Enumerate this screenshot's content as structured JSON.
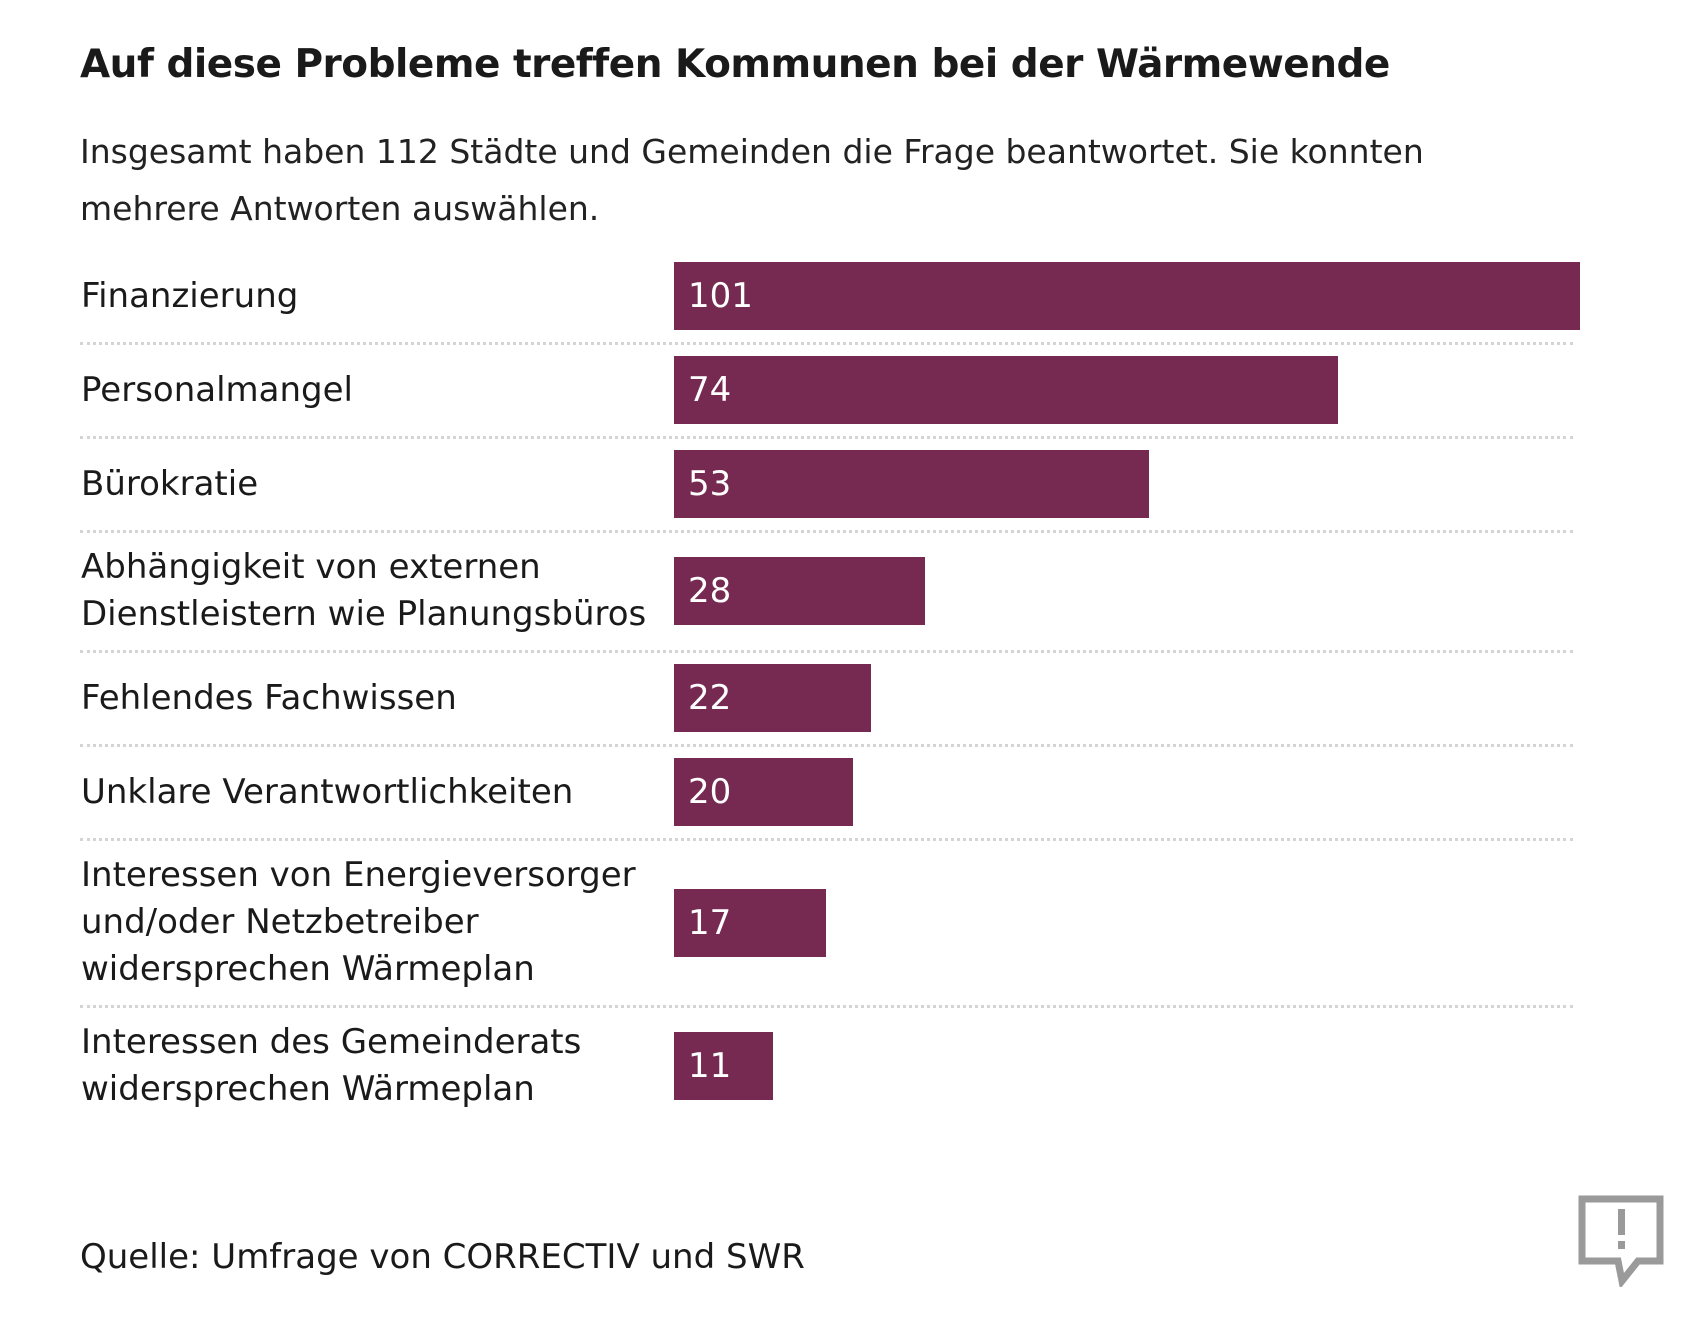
{
  "title": "Auf diese Probleme treffen Kommunen bei der Wärmewende",
  "subtitle_line1": "Insgesamt haben 112 Städte und Gemeinden die Frage beantwortet. Sie konnten",
  "subtitle_line2": "mehrere Antworten auswählen.",
  "source": "Quelle: Umfrage von CORRECTIV und SWR",
  "logo_icon": "speech-bubble-exclamation-icon",
  "colors": {
    "bar": "#762a52",
    "separator": "#d4d4d4",
    "text": "#1a1a1a"
  },
  "chart_data": {
    "type": "bar",
    "orientation": "horizontal",
    "categories": [
      [
        "Finanzierung"
      ],
      [
        "Personalmangel"
      ],
      [
        "Bürokratie"
      ],
      [
        "Abhängigkeit von externen",
        "Dienstleistern wie Planungsbüros"
      ],
      [
        "Fehlendes Fachwissen"
      ],
      [
        "Unklare Verantwortlichkeiten"
      ],
      [
        "Interessen von Energieversorger",
        "und/oder Netzbetreiber",
        "widersprechen Wärmeplan"
      ],
      [
        "Interessen des Gemeinderats",
        "widersprechen Wärmeplan"
      ]
    ],
    "values": [
      101,
      74,
      53,
      28,
      22,
      20,
      17,
      11
    ],
    "xlim": [
      0,
      101
    ],
    "data_labels": "inside-left",
    "grid": false
  }
}
